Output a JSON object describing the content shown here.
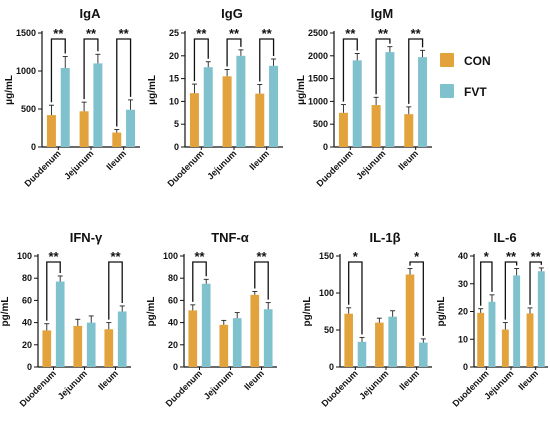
{
  "colors": {
    "CON": "#E3A33C",
    "FVT": "#7FC1CD"
  },
  "legend": [
    {
      "label": "CON",
      "color": "#E3A33C"
    },
    {
      "label": "FVT",
      "color": "#7FC1CD"
    }
  ],
  "chart_data": [
    {
      "type": "bar",
      "title": "IgA",
      "ylabel": "μg/mL",
      "ylim": [
        0,
        1500
      ],
      "yticks": [
        "0",
        "500",
        "1000",
        "1500"
      ],
      "categories": [
        "Duodenum",
        "Jejunum",
        "Ileum"
      ],
      "series": [
        {
          "name": "CON",
          "values": [
            420,
            470,
            190
          ],
          "errors": [
            130,
            120,
            40
          ]
        },
        {
          "name": "FVT",
          "values": [
            1040,
            1100,
            490
          ],
          "errors": [
            150,
            120,
            130
          ]
        }
      ],
      "significance": [
        "**",
        "**",
        "**"
      ]
    },
    {
      "type": "bar",
      "title": "IgG",
      "ylabel": "μg/mL",
      "ylim": [
        0,
        25
      ],
      "yticks": [
        "0",
        "5",
        "10",
        "15",
        "20",
        "25"
      ],
      "categories": [
        "Duodenum",
        "Jejunum",
        "Ileum"
      ],
      "series": [
        {
          "name": "CON",
          "values": [
            11.8,
            15.5,
            11.7
          ],
          "errors": [
            2.0,
            1.5,
            2.0
          ]
        },
        {
          "name": "FVT",
          "values": [
            17.5,
            20.0,
            17.8
          ],
          "errors": [
            1.2,
            1.3,
            1.5
          ]
        }
      ],
      "significance": [
        "**",
        "**",
        "**"
      ]
    },
    {
      "type": "bar",
      "title": "IgM",
      "ylabel": "μg/mL",
      "ylim": [
        0,
        2500
      ],
      "yticks": [
        "0",
        "500",
        "1000",
        "1500",
        "2000",
        "2500"
      ],
      "categories": [
        "Duodenum",
        "Jejunum",
        "Ileum"
      ],
      "series": [
        {
          "name": "CON",
          "values": [
            750,
            920,
            720
          ],
          "errors": [
            180,
            170,
            160
          ]
        },
        {
          "name": "FVT",
          "values": [
            1900,
            2080,
            1970
          ],
          "errors": [
            150,
            120,
            150
          ]
        }
      ],
      "significance": [
        "**",
        "**",
        "**"
      ]
    },
    {
      "type": "bar",
      "title": "IFN-γ",
      "ylabel": "pg/mL",
      "ylim": [
        0,
        100
      ],
      "yticks": [
        "0",
        "20",
        "40",
        "60",
        "80",
        "100"
      ],
      "categories": [
        "Duodenum",
        "Jejunum",
        "Ileum"
      ],
      "series": [
        {
          "name": "CON",
          "values": [
            33,
            37,
            34
          ],
          "errors": [
            6,
            6,
            6
          ]
        },
        {
          "name": "FVT",
          "values": [
            77,
            40,
            50
          ],
          "errors": [
            5,
            6,
            5
          ]
        }
      ],
      "significance": [
        "**",
        "",
        "**"
      ]
    },
    {
      "type": "bar",
      "title": "TNF-α",
      "ylabel": "pg/mL",
      "ylim": [
        0,
        100
      ],
      "yticks": [
        "0",
        "20",
        "40",
        "60",
        "80",
        "100"
      ],
      "categories": [
        "Duodenum",
        "Jejunum",
        "Ileum"
      ],
      "series": [
        {
          "name": "CON",
          "values": [
            51,
            38,
            65
          ],
          "errors": [
            5,
            4,
            3
          ]
        },
        {
          "name": "FVT",
          "values": [
            75,
            44,
            52
          ],
          "errors": [
            4,
            5,
            6
          ]
        }
      ],
      "significance": [
        "**",
        "",
        "**"
      ]
    },
    {
      "type": "bar",
      "title": "IL-1β",
      "ylabel": "pg/mL",
      "ylim": [
        0,
        150
      ],
      "yticks": [
        "0",
        "50",
        "100",
        "150"
      ],
      "categories": [
        "Duodenum",
        "Jejunum",
        "Ileum"
      ],
      "series": [
        {
          "name": "CON",
          "values": [
            72,
            60,
            125
          ],
          "errors": [
            8,
            6,
            8
          ]
        },
        {
          "name": "FVT",
          "values": [
            34,
            68,
            33
          ],
          "errors": [
            6,
            8,
            5
          ]
        }
      ],
      "significance": [
        "*",
        "",
        "*"
      ]
    },
    {
      "type": "bar",
      "title": "IL-6",
      "ylabel": "pg/mL",
      "ylim": [
        0,
        40
      ],
      "yticks": [
        "0",
        "10",
        "20",
        "30",
        "40"
      ],
      "categories": [
        "Duodenum",
        "Jejunum",
        "Ileum"
      ],
      "series": [
        {
          "name": "CON",
          "values": [
            19.5,
            13.5,
            19.3
          ],
          "errors": [
            1.5,
            2.5,
            2.0
          ]
        },
        {
          "name": "FVT",
          "values": [
            23.5,
            33.0,
            34.5
          ],
          "errors": [
            2.5,
            2.5,
            1.2
          ]
        }
      ],
      "significance": [
        "*",
        "**",
        "**"
      ]
    }
  ]
}
